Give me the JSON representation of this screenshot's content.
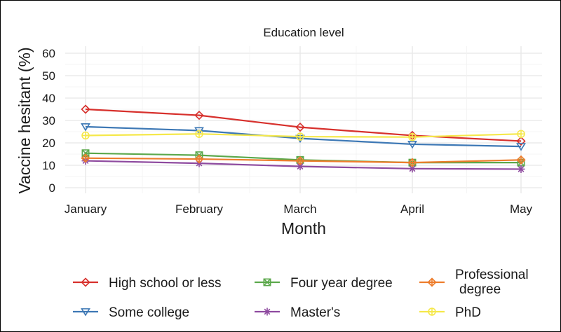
{
  "chart_data": {
    "type": "line",
    "title": "Education level",
    "xlabel": "Month",
    "ylabel": "Vaccine hesitant (%)",
    "ylim": [
      0,
      60
    ],
    "yticks": [
      0,
      10,
      20,
      30,
      40,
      50,
      60
    ],
    "grid": true,
    "legend_position": "bottom",
    "categories": [
      "January",
      "February",
      "March",
      "April",
      "May"
    ],
    "series": [
      {
        "name": "High school or less",
        "color": "#d7302c",
        "marker": "diamond",
        "values": [
          35,
          32.3,
          27,
          23.3,
          20.8
        ]
      },
      {
        "name": "Some college",
        "color": "#3d78b5",
        "marker": "triangle-down",
        "values": [
          27.2,
          25.5,
          22,
          19.4,
          18.4
        ]
      },
      {
        "name": "Four year degree",
        "color": "#5ba84b",
        "marker": "square-cross",
        "values": [
          15.4,
          14.5,
          12.4,
          11.2,
          11.2
        ]
      },
      {
        "name": "Master's",
        "color": "#8e4a9f",
        "marker": "asterisk",
        "values": [
          12,
          10.9,
          9.5,
          8.5,
          8.3
        ]
      },
      {
        "name": "Professional degree",
        "color": "#ed7d2c",
        "marker": "diamond-plus",
        "values": [
          13.2,
          12.8,
          12,
          11.2,
          12.4
        ]
      },
      {
        "name": "PhD",
        "color": "#f5e84a",
        "marker": "circle-plus",
        "values": [
          23.3,
          24,
          22.8,
          22.6,
          24
        ]
      }
    ]
  },
  "legend": {
    "items": [
      {
        "label": "High school or less"
      },
      {
        "label": "Four year degree"
      },
      {
        "label_line1": "Professional",
        "label_line2": "degree"
      },
      {
        "label": "Some college"
      },
      {
        "label": "Master's"
      },
      {
        "label": "PhD"
      }
    ]
  }
}
